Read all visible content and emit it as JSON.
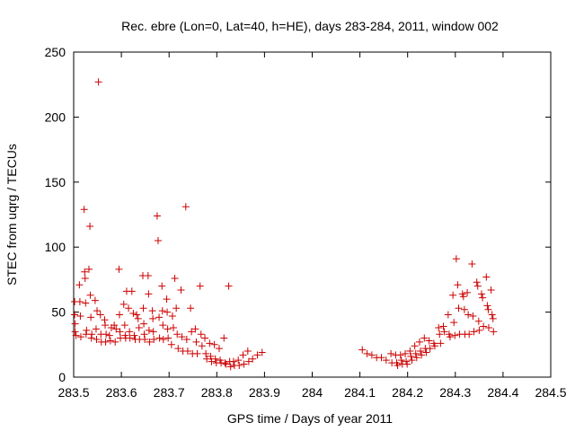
{
  "chart_data": {
    "type": "scatter",
    "title": "Rec. ebre (Lon=0, Lat=40, h=HE), days 283-284, 2011, window 002",
    "xlabel": "GPS time / Days of year 2011",
    "ylabel": "STEC from uqrg / TECUs",
    "xlim": [
      283.5,
      284.5
    ],
    "ylim": [
      0,
      250
    ],
    "xticks": [
      283.5,
      283.6,
      283.7,
      283.8,
      283.9,
      284.0,
      284.1,
      284.2,
      284.3,
      284.4,
      284.5
    ],
    "xtick_labels": [
      "283.5",
      "283.6",
      "283.7",
      "283.8",
      "283.9",
      "284",
      "284.1",
      "284.2",
      "284.3",
      "284.4",
      "284.5"
    ],
    "yticks": [
      0,
      50,
      100,
      150,
      200,
      250
    ],
    "ytick_labels": [
      "0",
      "50",
      "100",
      "150",
      "200",
      "250"
    ],
    "grid": false,
    "marker": "+",
    "color": "#cc0000",
    "series": [
      {
        "name": "STEC",
        "points": [
          [
            283.502,
            58
          ],
          [
            283.502,
            48
          ],
          [
            283.503,
            41
          ],
          [
            283.503,
            35
          ],
          [
            283.505,
            32
          ],
          [
            283.512,
            71
          ],
          [
            283.513,
            58
          ],
          [
            283.514,
            47
          ],
          [
            283.515,
            31
          ],
          [
            283.522,
            129
          ],
          [
            283.523,
            81
          ],
          [
            283.524,
            76
          ],
          [
            283.525,
            57
          ],
          [
            283.526,
            33
          ],
          [
            283.527,
            36
          ],
          [
            283.532,
            83
          ],
          [
            283.534,
            116
          ],
          [
            283.535,
            63
          ],
          [
            283.536,
            46
          ],
          [
            283.537,
            30
          ],
          [
            283.538,
            33
          ],
          [
            283.545,
            59
          ],
          [
            283.547,
            37
          ],
          [
            283.548,
            29
          ],
          [
            283.549,
            51
          ],
          [
            283.552,
            227
          ],
          [
            283.556,
            48
          ],
          [
            283.557,
            33
          ],
          [
            283.558,
            27
          ],
          [
            283.565,
            44
          ],
          [
            283.566,
            40
          ],
          [
            283.567,
            27
          ],
          [
            283.568,
            33
          ],
          [
            283.575,
            32
          ],
          [
            283.577,
            28
          ],
          [
            283.579,
            38
          ],
          [
            283.585,
            40
          ],
          [
            283.587,
            27
          ],
          [
            283.589,
            37
          ],
          [
            283.595,
            83
          ],
          [
            283.596,
            48
          ],
          [
            283.597,
            35
          ],
          [
            283.598,
            30
          ],
          [
            283.605,
            56
          ],
          [
            283.607,
            40
          ],
          [
            283.608,
            32
          ],
          [
            283.609,
            30
          ],
          [
            283.611,
            66
          ],
          [
            283.615,
            53
          ],
          [
            283.617,
            35
          ],
          [
            283.618,
            30
          ],
          [
            283.622,
            66
          ],
          [
            283.625,
            49
          ],
          [
            283.627,
            32
          ],
          [
            283.629,
            29
          ],
          [
            283.632,
            48
          ],
          [
            283.635,
            45
          ],
          [
            283.637,
            38
          ],
          [
            283.638,
            29
          ],
          [
            283.645,
            78
          ],
          [
            283.646,
            53
          ],
          [
            283.647,
            41
          ],
          [
            283.648,
            33
          ],
          [
            283.649,
            29
          ],
          [
            283.656,
            78
          ],
          [
            283.657,
            64
          ],
          [
            283.658,
            36
          ],
          [
            283.659,
            27
          ],
          [
            283.665,
            51
          ],
          [
            283.666,
            45
          ],
          [
            283.667,
            35
          ],
          [
            283.668,
            29
          ],
          [
            283.675,
            124
          ],
          [
            283.677,
            105
          ],
          [
            283.679,
            46
          ],
          [
            283.68,
            30
          ],
          [
            283.685,
            70
          ],
          [
            283.686,
            51
          ],
          [
            283.687,
            40
          ],
          [
            283.688,
            29
          ],
          [
            283.695,
            60
          ],
          [
            283.696,
            50
          ],
          [
            283.697,
            37
          ],
          [
            283.698,
            30
          ],
          [
            283.705,
            25
          ],
          [
            283.707,
            47
          ],
          [
            283.709,
            38
          ],
          [
            283.712,
            76
          ],
          [
            283.715,
            53
          ],
          [
            283.717,
            33
          ],
          [
            283.719,
            22
          ],
          [
            283.725,
            67
          ],
          [
            283.727,
            31
          ],
          [
            283.729,
            20
          ],
          [
            283.735,
            131
          ],
          [
            283.737,
            29
          ],
          [
            283.739,
            20
          ],
          [
            283.745,
            53
          ],
          [
            283.747,
            35
          ],
          [
            283.749,
            18
          ],
          [
            283.755,
            37
          ],
          [
            283.757,
            27
          ],
          [
            283.759,
            18
          ],
          [
            283.765,
            70
          ],
          [
            283.767,
            33
          ],
          [
            283.769,
            24
          ],
          [
            283.775,
            30
          ],
          [
            283.777,
            18
          ],
          [
            283.779,
            14
          ],
          [
            283.785,
            26
          ],
          [
            283.787,
            16
          ],
          [
            283.789,
            12
          ],
          [
            283.795,
            25
          ],
          [
            283.797,
            14
          ],
          [
            283.799,
            11
          ],
          [
            283.805,
            22
          ],
          [
            283.807,
            13
          ],
          [
            283.809,
            11
          ],
          [
            283.815,
            30
          ],
          [
            283.817,
            11
          ],
          [
            283.819,
            10
          ],
          [
            283.825,
            70
          ],
          [
            283.827,
            12
          ],
          [
            283.829,
            8
          ],
          [
            283.835,
            12
          ],
          [
            283.837,
            9
          ],
          [
            283.845,
            13
          ],
          [
            283.847,
            9
          ],
          [
            283.855,
            17
          ],
          [
            283.857,
            10
          ],
          [
            283.865,
            20
          ],
          [
            283.867,
            12
          ],
          [
            283.875,
            14
          ],
          [
            283.885,
            17
          ],
          [
            283.895,
            19
          ],
          [
            284.105,
            21
          ],
          [
            284.115,
            18
          ],
          [
            284.125,
            17
          ],
          [
            284.135,
            15
          ],
          [
            284.145,
            15
          ],
          [
            284.155,
            13
          ],
          [
            284.165,
            18
          ],
          [
            284.167,
            11
          ],
          [
            284.175,
            17
          ],
          [
            284.177,
            11
          ],
          [
            284.179,
            9
          ],
          [
            284.185,
            17
          ],
          [
            284.187,
            13
          ],
          [
            284.189,
            10
          ],
          [
            284.195,
            18
          ],
          [
            284.197,
            12
          ],
          [
            284.199,
            10
          ],
          [
            284.205,
            20
          ],
          [
            284.207,
            16
          ],
          [
            284.209,
            13
          ],
          [
            284.215,
            24
          ],
          [
            284.217,
            18
          ],
          [
            284.219,
            15
          ],
          [
            284.225,
            27
          ],
          [
            284.227,
            20
          ],
          [
            284.229,
            17
          ],
          [
            284.235,
            30
          ],
          [
            284.237,
            22
          ],
          [
            284.239,
            19
          ],
          [
            284.245,
            28
          ],
          [
            284.247,
            22
          ],
          [
            284.255,
            26
          ],
          [
            284.257,
            24
          ],
          [
            284.265,
            38
          ],
          [
            284.267,
            33
          ],
          [
            284.269,
            26
          ],
          [
            284.275,
            39
          ],
          [
            284.277,
            35
          ],
          [
            284.285,
            48
          ],
          [
            284.287,
            33
          ],
          [
            284.289,
            31
          ],
          [
            284.295,
            63
          ],
          [
            284.297,
            42
          ],
          [
            284.299,
            32
          ],
          [
            284.302,
            91
          ],
          [
            284.305,
            71
          ],
          [
            284.307,
            53
          ],
          [
            284.309,
            33
          ],
          [
            284.315,
            64
          ],
          [
            284.317,
            62
          ],
          [
            284.319,
            52
          ],
          [
            284.32,
            33
          ],
          [
            284.325,
            65
          ],
          [
            284.327,
            48
          ],
          [
            284.329,
            33
          ],
          [
            284.335,
            87
          ],
          [
            284.337,
            47
          ],
          [
            284.339,
            35
          ],
          [
            284.345,
            73
          ],
          [
            284.347,
            70
          ],
          [
            284.349,
            43
          ],
          [
            284.35,
            36
          ],
          [
            284.355,
            64
          ],
          [
            284.357,
            61
          ],
          [
            284.359,
            39
          ],
          [
            284.365,
            77
          ],
          [
            284.367,
            55
          ],
          [
            284.369,
            52
          ],
          [
            284.37,
            38
          ],
          [
            284.375,
            67
          ],
          [
            284.377,
            48
          ],
          [
            284.379,
            45
          ],
          [
            284.38,
            35
          ]
        ]
      }
    ]
  }
}
